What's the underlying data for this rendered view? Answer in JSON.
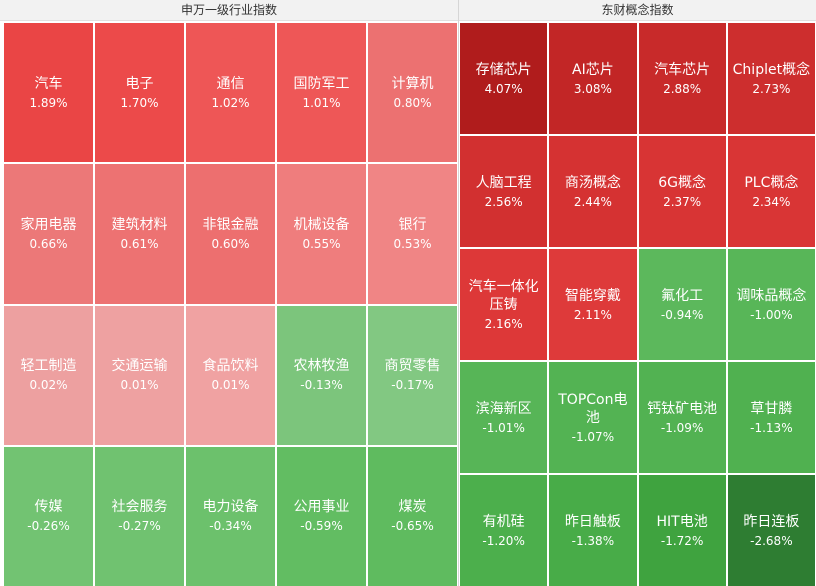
{
  "left_panel": {
    "title": "申万一级行业指数",
    "tiles": [
      {
        "name": "汽车",
        "change": "1.89%",
        "color": "#ea4545"
      },
      {
        "name": "电子",
        "change": "1.70%",
        "color": "#ec4a4a"
      },
      {
        "name": "通信",
        "change": "1.02%",
        "color": "#ee5656"
      },
      {
        "name": "国防军工",
        "change": "1.01%",
        "color": "#ee5757"
      },
      {
        "name": "计算机",
        "change": "0.80%",
        "color": "#ec7171"
      },
      {
        "name": "家用电器",
        "change": "0.66%",
        "color": "#ec7878"
      },
      {
        "name": "建筑材料",
        "change": "0.61%",
        "color": "#ed7272"
      },
      {
        "name": "非银金融",
        "change": "0.60%",
        "color": "#ed6f6f"
      },
      {
        "name": "机械设备",
        "change": "0.55%",
        "color": "#ef7d7d"
      },
      {
        "name": "银行",
        "change": "0.53%",
        "color": "#f08585"
      },
      {
        "name": "轻工制造",
        "change": "0.02%",
        "color": "#eda0a0"
      },
      {
        "name": "交通运输",
        "change": "0.01%",
        "color": "#eea1a1"
      },
      {
        "name": "食品饮料",
        "change": "0.01%",
        "color": "#f0a2a2"
      },
      {
        "name": "农林牧渔",
        "change": "-0.13%",
        "color": "#7cc57c"
      },
      {
        "name": "商贸零售",
        "change": "-0.17%",
        "color": "#82c882"
      },
      {
        "name": "传媒",
        "change": "-0.26%",
        "color": "#72c372"
      },
      {
        "name": "社会服务",
        "change": "-0.27%",
        "color": "#70c270"
      },
      {
        "name": "电力设备",
        "change": "-0.34%",
        "color": "#6cc16c"
      },
      {
        "name": "公用事业",
        "change": "-0.59%",
        "color": "#62bd62"
      },
      {
        "name": "煤炭",
        "change": "-0.65%",
        "color": "#5fbb5f"
      }
    ]
  },
  "right_panel": {
    "title": "东财概念指数",
    "tiles": [
      {
        "name": "存储芯片",
        "change": "4.07%",
        "color": "#b01c1c"
      },
      {
        "name": "AI芯片",
        "change": "3.08%",
        "color": "#c22626"
      },
      {
        "name": "汽车芯片",
        "change": "2.88%",
        "color": "#c82a2a"
      },
      {
        "name": "Chiplet概念",
        "change": "2.73%",
        "color": "#cd2e2e"
      },
      {
        "name": "人脑工程",
        "change": "2.56%",
        "color": "#d23030"
      },
      {
        "name": "商汤概念",
        "change": "2.44%",
        "color": "#d53232"
      },
      {
        "name": "6G概念",
        "change": "2.37%",
        "color": "#d83434"
      },
      {
        "name": "PLC概念",
        "change": "2.34%",
        "color": "#d93535"
      },
      {
        "name": "汽车一体化压铸",
        "change": "2.16%",
        "color": "#dd3838"
      },
      {
        "name": "智能穿戴",
        "change": "2.11%",
        "color": "#de3a3a"
      },
      {
        "name": "氟化工",
        "change": "-0.94%",
        "color": "#5cb85c"
      },
      {
        "name": "调味品概念",
        "change": "-1.00%",
        "color": "#58b658"
      },
      {
        "name": "滨海新区",
        "change": "-1.01%",
        "color": "#57b557"
      },
      {
        "name": "TOPCon电池",
        "change": "-1.07%",
        "color": "#53b353"
      },
      {
        "name": "钙钛矿电池",
        "change": "-1.09%",
        "color": "#52b252"
      },
      {
        "name": "草甘膦",
        "change": "-1.13%",
        "color": "#50b150"
      },
      {
        "name": "有机硅",
        "change": "-1.20%",
        "color": "#4caf4c"
      },
      {
        "name": "昨日触板",
        "change": "-1.38%",
        "color": "#48ac48"
      },
      {
        "name": "HIT电池",
        "change": "-1.72%",
        "color": "#3fa33f"
      },
      {
        "name": "昨日连板",
        "change": "-2.68%",
        "color": "#2e7d32"
      }
    ]
  }
}
